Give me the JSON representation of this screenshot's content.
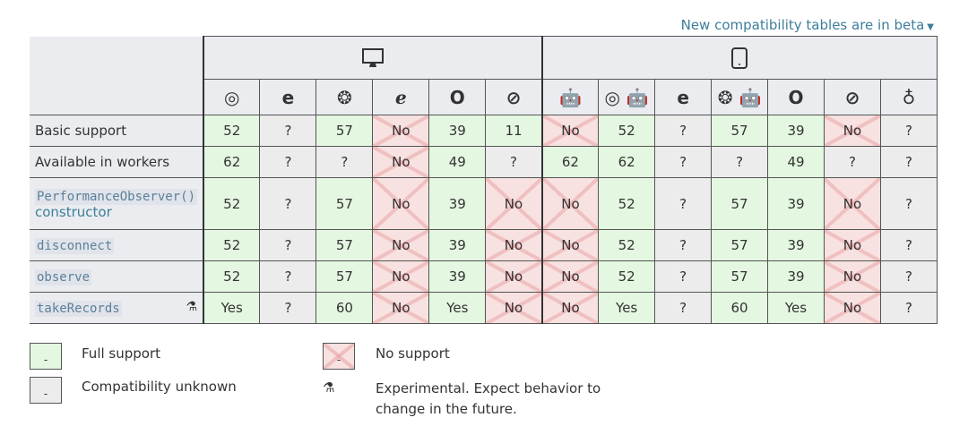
{
  "beta_link": "New compatibility tables are in beta",
  "platforms": [
    {
      "icon": "desktop-icon"
    },
    {
      "icon": "tablet-icon"
    }
  ],
  "browsers": [
    {
      "icon": "chrome-icon",
      "glyph": "◎"
    },
    {
      "icon": "edge-icon",
      "glyph": "e"
    },
    {
      "icon": "firefox-icon",
      "glyph": "❂"
    },
    {
      "icon": "ie-icon",
      "glyph": "ℯ"
    },
    {
      "icon": "opera-icon",
      "glyph": "O"
    },
    {
      "icon": "safari-icon",
      "glyph": "⊘"
    },
    {
      "icon": "android-webview-icon",
      "glyph": "🤖"
    },
    {
      "icon": "chrome-android-icon",
      "glyph": "◎ 🤖"
    },
    {
      "icon": "edge-mobile-icon",
      "glyph": "e"
    },
    {
      "icon": "firefox-android-icon",
      "glyph": "❂ 🤖"
    },
    {
      "icon": "opera-android-icon",
      "glyph": "O"
    },
    {
      "icon": "safari-ios-icon",
      "glyph": "⊘"
    },
    {
      "icon": "samsung-internet-icon",
      "glyph": "♁"
    }
  ],
  "rows": [
    {
      "feature": "Basic support",
      "code": false,
      "cells": [
        [
          "52",
          "y"
        ],
        [
          "?",
          "u"
        ],
        [
          "57",
          "y"
        ],
        [
          "No",
          "n"
        ],
        [
          "39",
          "y"
        ],
        [
          "11",
          "y"
        ],
        [
          "No",
          "n"
        ],
        [
          "52",
          "y"
        ],
        [
          "?",
          "u"
        ],
        [
          "57",
          "y"
        ],
        [
          "39",
          "y"
        ],
        [
          "No",
          "n"
        ],
        [
          "?",
          "u"
        ]
      ]
    },
    {
      "feature": "Available in workers",
      "code": false,
      "cells": [
        [
          "62",
          "y"
        ],
        [
          "?",
          "u"
        ],
        [
          "?",
          "u"
        ],
        [
          "No",
          "n"
        ],
        [
          "49",
          "y"
        ],
        [
          "?",
          "u"
        ],
        [
          "62",
          "y"
        ],
        [
          "62",
          "y"
        ],
        [
          "?",
          "u"
        ],
        [
          "?",
          "u"
        ],
        [
          "49",
          "y"
        ],
        [
          "?",
          "u"
        ],
        [
          "?",
          "u"
        ]
      ]
    },
    {
      "feature": "PerformanceObserver()",
      "code": true,
      "suffix": "constructor",
      "cells": [
        [
          "52",
          "y"
        ],
        [
          "?",
          "u"
        ],
        [
          "57",
          "y"
        ],
        [
          "No",
          "n"
        ],
        [
          "39",
          "y"
        ],
        [
          "No",
          "n"
        ],
        [
          "No",
          "n"
        ],
        [
          "52",
          "y"
        ],
        [
          "?",
          "u"
        ],
        [
          "57",
          "y"
        ],
        [
          "39",
          "y"
        ],
        [
          "No",
          "n"
        ],
        [
          "?",
          "u"
        ]
      ]
    },
    {
      "feature": "disconnect",
      "code": true,
      "cells": [
        [
          "52",
          "y"
        ],
        [
          "?",
          "u"
        ],
        [
          "57",
          "y"
        ],
        [
          "No",
          "n"
        ],
        [
          "39",
          "y"
        ],
        [
          "No",
          "n"
        ],
        [
          "No",
          "n"
        ],
        [
          "52",
          "y"
        ],
        [
          "?",
          "u"
        ],
        [
          "57",
          "y"
        ],
        [
          "39",
          "y"
        ],
        [
          "No",
          "n"
        ],
        [
          "?",
          "u"
        ]
      ]
    },
    {
      "feature": "observe",
      "code": true,
      "cells": [
        [
          "52",
          "y"
        ],
        [
          "?",
          "u"
        ],
        [
          "57",
          "y"
        ],
        [
          "No",
          "n"
        ],
        [
          "39",
          "y"
        ],
        [
          "No",
          "n"
        ],
        [
          "No",
          "n"
        ],
        [
          "52",
          "y"
        ],
        [
          "?",
          "u"
        ],
        [
          "57",
          "y"
        ],
        [
          "39",
          "y"
        ],
        [
          "No",
          "n"
        ],
        [
          "?",
          "u"
        ]
      ]
    },
    {
      "feature": "takeRecords",
      "code": true,
      "experimental": true,
      "cells": [
        [
          "Yes",
          "y"
        ],
        [
          "?",
          "u"
        ],
        [
          "60",
          "y"
        ],
        [
          "No",
          "n"
        ],
        [
          "Yes",
          "y"
        ],
        [
          "No",
          "n"
        ],
        [
          "No",
          "n"
        ],
        [
          "Yes",
          "y"
        ],
        [
          "?",
          "u"
        ],
        [
          "60",
          "y"
        ],
        [
          "Yes",
          "y"
        ],
        [
          "No",
          "n"
        ],
        [
          "?",
          "u"
        ]
      ]
    }
  ],
  "legend": {
    "full": "Full support",
    "unknown": "Compatibility unknown",
    "none": "No support",
    "experimental": "Experimental. Expect behavior to change in the future.",
    "box_mark": "-"
  },
  "colors": {
    "full": "#e4f8e1",
    "unknown": "#ececec",
    "none": "#f7e1e1",
    "link": "#3d7e9a"
  }
}
